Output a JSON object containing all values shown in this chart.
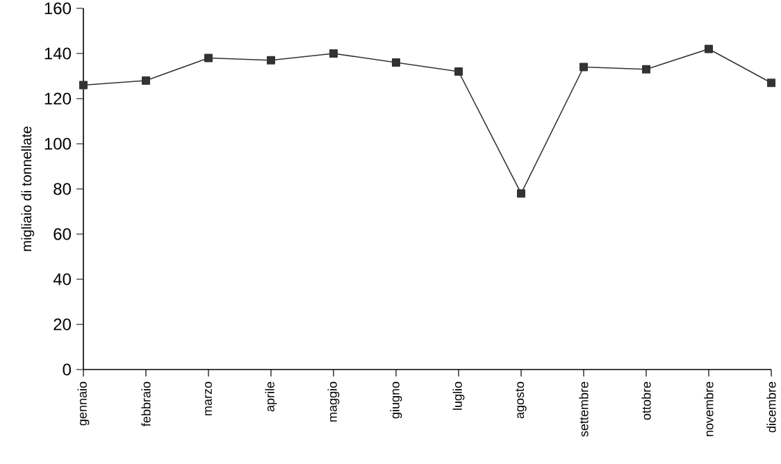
{
  "chart_data": {
    "type": "line",
    "ylabel": "migliaio di tonnellate",
    "categories": [
      "gennaio",
      "febbraio",
      "marzo",
      "aprile",
      "maggio",
      "giugno",
      "luglio",
      "agosto",
      "settembre",
      "ottobre",
      "novembre",
      "dicembre"
    ],
    "series": [
      {
        "color": "#333333",
        "values": [
          126,
          128,
          138,
          137,
          140,
          136,
          132,
          78,
          134,
          133,
          142,
          127
        ]
      }
    ],
    "ylim": [
      0,
      160
    ],
    "yticks": [
      0,
      20,
      40,
      60,
      80,
      100,
      120,
      140,
      160
    ],
    "marker": "square",
    "line_style": "solid"
  }
}
